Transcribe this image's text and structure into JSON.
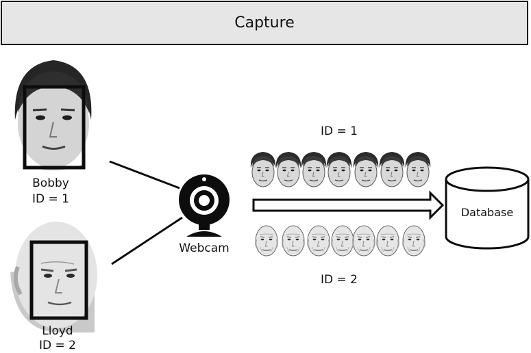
{
  "title": "Capture",
  "people": [
    {
      "name": "Bobby",
      "id_label": "ID = 1"
    },
    {
      "name": "Lloyd",
      "id_label": "ID = 2"
    }
  ],
  "webcam": {
    "label": "Webcam",
    "icon": "webcam-icon"
  },
  "groups": [
    {
      "id_label": "ID = 1",
      "face_count": 7
    },
    {
      "id_label": "ID = 2",
      "face_count": 7
    }
  ],
  "database": {
    "label": "Database",
    "icon": "database-cylinder-icon"
  }
}
